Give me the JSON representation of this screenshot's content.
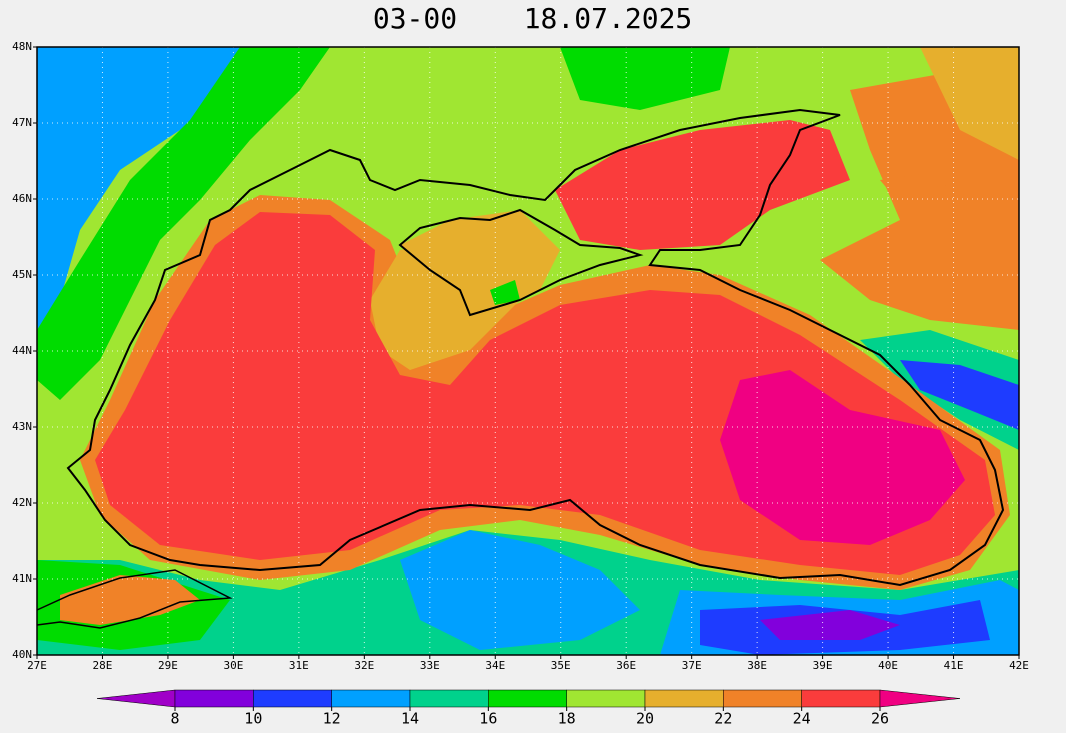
{
  "title": {
    "time": "03-00",
    "date": "18.07.2025"
  },
  "map": {
    "lonlim": [
      27,
      42
    ],
    "latlim": [
      40,
      48
    ],
    "lon_ticks": [
      {
        "value": 27,
        "label": "27E"
      },
      {
        "value": 28,
        "label": "28E"
      },
      {
        "value": 29,
        "label": "29E"
      },
      {
        "value": 30,
        "label": "30E"
      },
      {
        "value": 31,
        "label": "31E"
      },
      {
        "value": 32,
        "label": "32E"
      },
      {
        "value": 33,
        "label": "33E"
      },
      {
        "value": 34,
        "label": "34E"
      },
      {
        "value": 35,
        "label": "35E"
      },
      {
        "value": 36,
        "label": "36E"
      },
      {
        "value": 37,
        "label": "37E"
      },
      {
        "value": 38,
        "label": "38E"
      },
      {
        "value": 39,
        "label": "39E"
      },
      {
        "value": 40,
        "label": "40E"
      },
      {
        "value": 41,
        "label": "41E"
      },
      {
        "value": 42,
        "label": "42E"
      }
    ],
    "lat_ticks": [
      {
        "value": 40,
        "label": "40N"
      },
      {
        "value": 41,
        "label": "41N"
      },
      {
        "value": 42,
        "label": "42N"
      },
      {
        "value": 43,
        "label": "43N"
      },
      {
        "value": 44,
        "label": "44N"
      },
      {
        "value": 45,
        "label": "45N"
      },
      {
        "value": 46,
        "label": "46N"
      },
      {
        "value": 47,
        "label": "47N"
      },
      {
        "value": 48,
        "label": "48N"
      }
    ]
  },
  "colorbar": {
    "levels": [
      8,
      10,
      12,
      14,
      16,
      18,
      20,
      22,
      24,
      26
    ],
    "colors": [
      "#a000c8",
      "#8200dc",
      "#1e3cff",
      "#00a0ff",
      "#00d28c",
      "#00dc00",
      "#a0e632",
      "#e6af2d",
      "#f08228",
      "#fa3c3c",
      "#f00082"
    ]
  }
}
